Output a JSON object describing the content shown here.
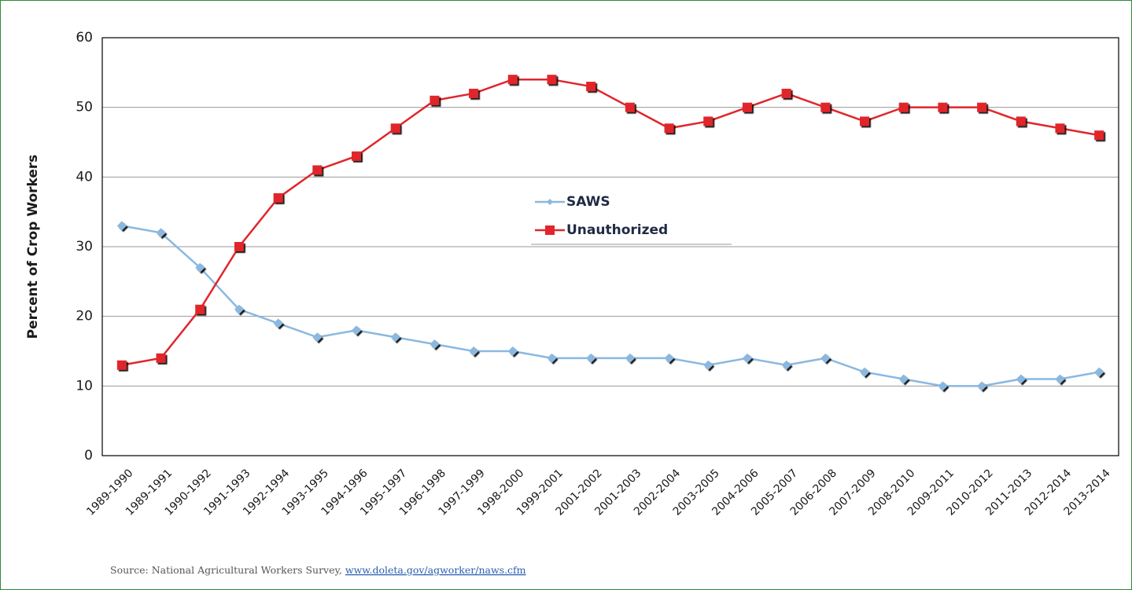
{
  "chart_data": {
    "type": "line",
    "y_label": "Percent of Crop Workers",
    "categories": [
      "1989-1990",
      "1989-1991",
      "1990-1992",
      "1991-1993",
      "1992-1994",
      "1993-1995",
      "1994-1996",
      "1995-1997",
      "1996-1998",
      "1997-1999",
      "1998-2000",
      "1999-2001",
      "2001-2002",
      "2001-2003",
      "2002-2004",
      "2003-2005",
      "2004-2006",
      "2005-2007",
      "2006-2008",
      "2007-2009",
      "2008-2010",
      "2009-2011",
      "2010-2012",
      "2011-2013",
      "2012-2014",
      "2013-2014"
    ],
    "series": [
      {
        "name": "SAWS",
        "color": "#8ab8e0",
        "marker": "diamond",
        "values": [
          33,
          32,
          27,
          21,
          19,
          17,
          18,
          17,
          16,
          15,
          15,
          14,
          14,
          14,
          14,
          13,
          14,
          13,
          14,
          12,
          11,
          10,
          10,
          11,
          11,
          12
        ]
      },
      {
        "name": "Unauthorized",
        "color": "#e0262c",
        "marker": "square",
        "values": [
          13,
          14,
          21,
          30,
          37,
          41,
          43,
          47,
          51,
          52,
          54,
          54,
          53,
          50,
          47,
          48,
          50,
          52,
          50,
          48,
          50,
          50,
          50,
          48,
          47,
          46
        ]
      }
    ],
    "ylim": [
      0,
      60
    ],
    "yticks": [
      0,
      10,
      20,
      30,
      40,
      50,
      60
    ],
    "grid": true,
    "source": {
      "text": "Source: National Agricultural Workers Survey, ",
      "link": "www.doleta.gov/agworker/naws.cfm"
    }
  }
}
